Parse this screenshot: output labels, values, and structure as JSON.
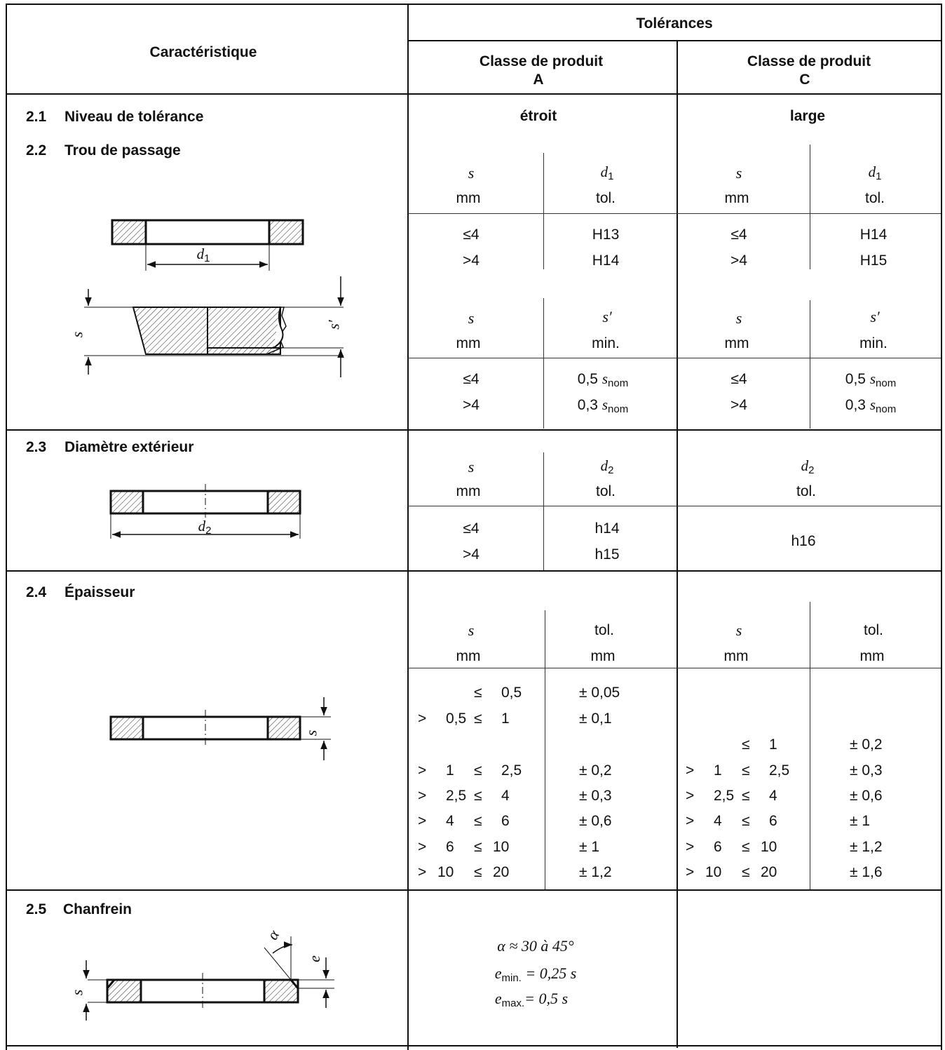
{
  "header": {
    "characteristic": "Caractéristique",
    "tolerances": "Tolérances",
    "class_a_line1": "Classe de produit",
    "class_a_line2": "A",
    "class_c_line1": "Classe de produit",
    "class_c_line2": "C"
  },
  "s21": {
    "num": "2.1",
    "title": "Niveau de tolérance",
    "a": "étroit",
    "c": "large"
  },
  "s22": {
    "num": "2.2",
    "title": "Trou de passage",
    "s": "s",
    "mm": "mm",
    "d": "d",
    "d_sub": "1",
    "tol": "tol.",
    "a_rows": [
      {
        "s": "≤4",
        "v": "H13"
      },
      {
        "s": ">4",
        "v": "H14"
      }
    ],
    "c_rows": [
      {
        "s": "≤4",
        "v": "H14"
      },
      {
        "s": ">4",
        "v": "H15"
      }
    ],
    "sp": "s′",
    "min": "min.",
    "a2_rows": [
      {
        "s": "≤4",
        "v": "0,5 ",
        "sub": "nom"
      },
      {
        "s": ">4",
        "v": "0,3 ",
        "sub": "nom"
      }
    ],
    "c2_rows": [
      {
        "s": "≤4",
        "v": "0,5 ",
        "sub": "nom"
      },
      {
        "s": ">4",
        "v": "0,3 ",
        "sub": "nom"
      }
    ],
    "fig_d1": "d",
    "fig_d1_sub": "1",
    "fig_s": "s",
    "fig_sp": "s′"
  },
  "s23": {
    "num": "2.3",
    "title": "Diamètre extérieur",
    "s": "s",
    "mm": "mm",
    "d": "d",
    "d_sub": "2",
    "tol": "tol.",
    "a_rows": [
      {
        "s": "≤4",
        "v": "h14"
      },
      {
        "s": ">4",
        "v": "h15"
      }
    ],
    "c_value": "h16",
    "fig_d2": "d",
    "fig_d2_sub": "2"
  },
  "s24": {
    "num": "2.4",
    "title": "Épaisseur",
    "s": "s",
    "mm": "mm",
    "tol": "tol.",
    "a_rows": [
      {
        "op": "",
        "lo": "",
        "le": "≤",
        "hi": "0,5",
        "v": "± 0,05"
      },
      {
        "op": ">",
        "lo": "0,5",
        "le": "≤",
        "hi": "1",
        "v": "± 0,1"
      },
      {
        "op": ">",
        "lo": "1",
        "le": "≤",
        "hi": "2,5",
        "v": "± 0,2"
      },
      {
        "op": ">",
        "lo": "2,5",
        "le": "≤",
        "hi": "4",
        "v": "± 0,3"
      },
      {
        "op": ">",
        "lo": "4",
        "le": "≤",
        "hi": "6",
        "v": "± 0,6"
      },
      {
        "op": ">",
        "lo": "6",
        "le": "≤",
        "hi": "10",
        "v": "± 1"
      },
      {
        "op": ">",
        "lo": "10",
        "le": "≤",
        "hi": "20",
        "v": "± 1,2"
      }
    ],
    "c_rows": [
      {
        "op": "",
        "lo": "",
        "le": "≤",
        "hi": "1",
        "v": "± 0,2"
      },
      {
        "op": ">",
        "lo": "1",
        "le": "≤",
        "hi": "2,5",
        "v": "± 0,3"
      },
      {
        "op": ">",
        "lo": "2,5",
        "le": "≤",
        "hi": "4",
        "v": "± 0,6"
      },
      {
        "op": ">",
        "lo": "4",
        "le": "≤",
        "hi": "6",
        "v": "± 1"
      },
      {
        "op": ">",
        "lo": "6",
        "le": "≤",
        "hi": "10",
        "v": "± 1,2"
      },
      {
        "op": ">",
        "lo": "10",
        "le": "≤",
        "hi": "20",
        "v": "± 1,6"
      }
    ],
    "fig_s": "s"
  },
  "s25": {
    "num": "2.5",
    "title": "Chanfrein",
    "line1": "α ≈ 30 à 45°",
    "line2_var": "e",
    "line2_sub": "min.",
    "line2_rest": " = 0,25 s",
    "line3_var": "e",
    "line3_sub": "max.",
    "line3_rest": "= 0,5 s",
    "fig_alpha": "α",
    "fig_e": "e",
    "fig_s": "s"
  }
}
